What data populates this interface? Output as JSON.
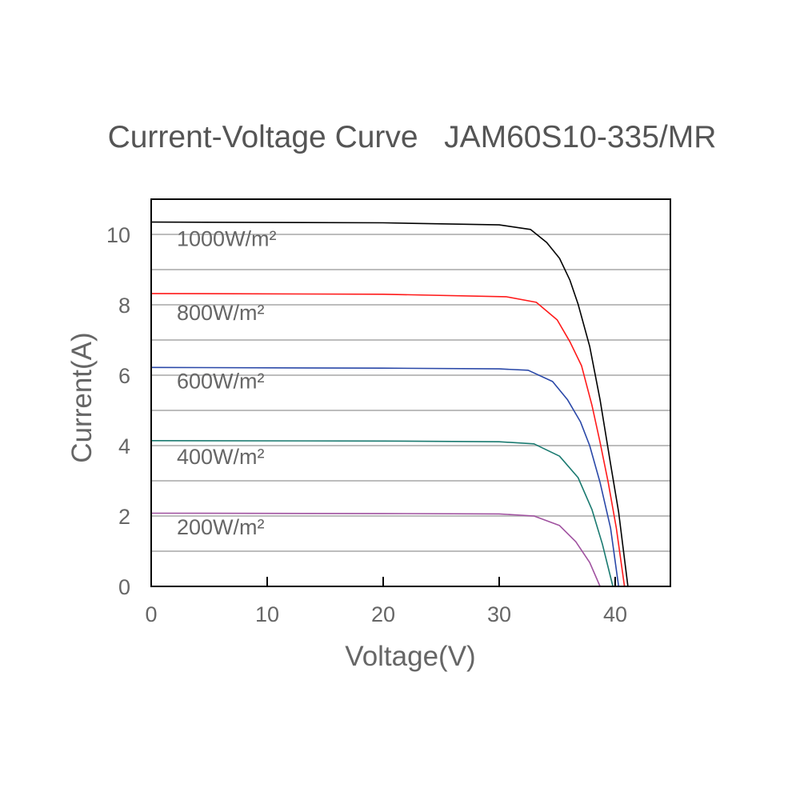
{
  "chart_data": {
    "type": "line",
    "title": "Current-Voltage Curve   JAM60S10-335/MR",
    "xlabel": "Voltage(V)",
    "ylabel": "Current(A)",
    "xlim": [
      0,
      45
    ],
    "ylim": [
      0,
      11
    ],
    "xticks": [
      0,
      10,
      20,
      30,
      40
    ],
    "yticks": [
      0,
      2,
      4,
      6,
      8,
      10
    ],
    "grid": "horizontal, every 1 A",
    "legend": "inline labels at left",
    "series": [
      {
        "name": "1000W/m²",
        "color": "#000000",
        "label_y": 9.9,
        "points": [
          [
            0,
            10.35
          ],
          [
            20,
            10.33
          ],
          [
            30,
            10.27
          ],
          [
            32.7,
            10.14
          ],
          [
            34.1,
            9.77
          ],
          [
            35.2,
            9.32
          ],
          [
            36.1,
            8.7
          ],
          [
            36.8,
            8.02
          ],
          [
            37.8,
            6.82
          ],
          [
            38.7,
            5.3
          ],
          [
            39.6,
            3.48
          ],
          [
            40.3,
            2.11
          ],
          [
            41.1,
            0
          ]
        ]
      },
      {
        "name": "800W/m²",
        "color": "#ff1a1a",
        "label_y": 7.8,
        "points": [
          [
            0,
            8.32
          ],
          [
            20,
            8.3
          ],
          [
            30.6,
            8.23
          ],
          [
            33.2,
            8.07
          ],
          [
            35,
            7.57
          ],
          [
            36.1,
            6.95
          ],
          [
            37.1,
            6.27
          ],
          [
            38,
            5.14
          ],
          [
            38.7,
            4.09
          ],
          [
            39.4,
            2.95
          ],
          [
            40.1,
            1.66
          ],
          [
            40.8,
            0
          ]
        ]
      },
      {
        "name": "600W/m²",
        "color": "#2a48a8",
        "label_y": 5.85,
        "points": [
          [
            0,
            6.22
          ],
          [
            20,
            6.2
          ],
          [
            30,
            6.18
          ],
          [
            32.5,
            6.14
          ],
          [
            34.6,
            5.82
          ],
          [
            35.9,
            5.3
          ],
          [
            37,
            4.68
          ],
          [
            37.8,
            4.0
          ],
          [
            38.7,
            2.95
          ],
          [
            39.6,
            1.66
          ],
          [
            40.3,
            0
          ]
        ]
      },
      {
        "name": "400W/m²",
        "color": "#1a7a70",
        "label_y": 3.7,
        "points": [
          [
            0,
            4.14
          ],
          [
            20,
            4.13
          ],
          [
            30,
            4.11
          ],
          [
            33,
            4.05
          ],
          [
            35.2,
            3.7
          ],
          [
            36.8,
            3.09
          ],
          [
            38,
            2.18
          ],
          [
            38.9,
            1.2
          ],
          [
            39.8,
            0
          ]
        ]
      },
      {
        "name": "200W/m²",
        "color": "#a052a0",
        "label_y": 1.7,
        "points": [
          [
            0,
            2.08
          ],
          [
            20,
            2.07
          ],
          [
            30,
            2.06
          ],
          [
            33,
            2.0
          ],
          [
            35.2,
            1.73
          ],
          [
            36.6,
            1.27
          ],
          [
            37.8,
            0.68
          ],
          [
            38.7,
            0
          ]
        ]
      }
    ]
  }
}
